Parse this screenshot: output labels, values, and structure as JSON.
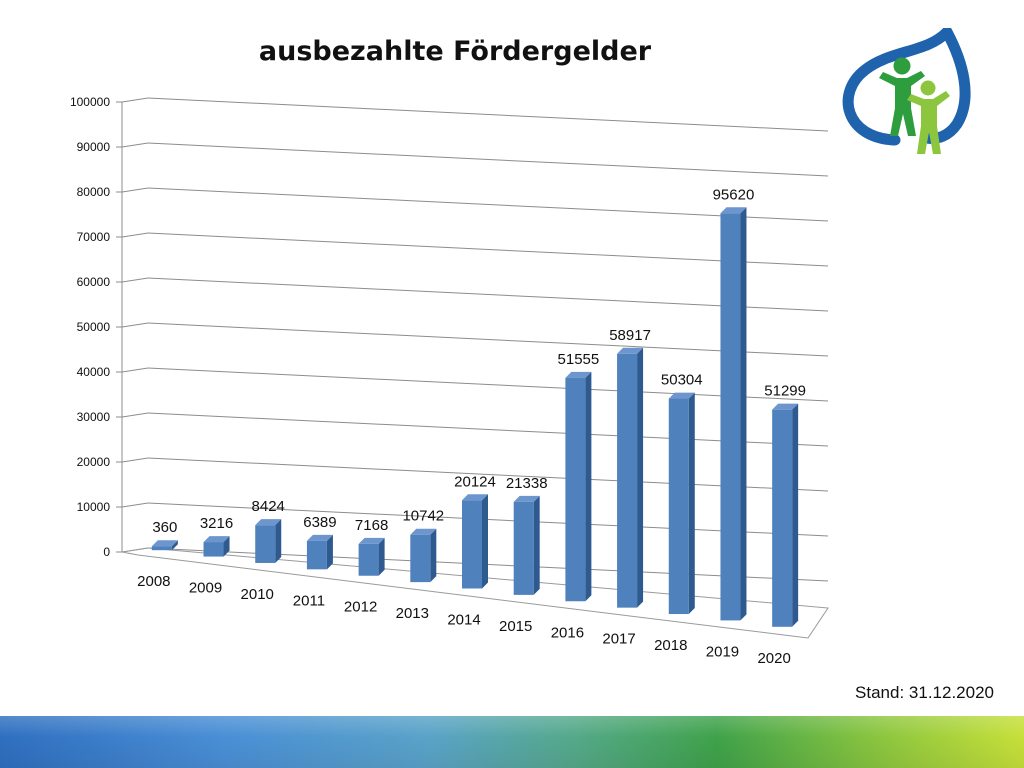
{
  "chart_data": {
    "type": "bar",
    "title": "ausbezahlte Fördergelder",
    "categories": [
      "2008",
      "2009",
      "2010",
      "2011",
      "2012",
      "2013",
      "2014",
      "2015",
      "2016",
      "2017",
      "2018",
      "2019",
      "2020"
    ],
    "values": [
      360,
      3216,
      8424,
      6389,
      7168,
      10742,
      20124,
      21338,
      51555,
      58917,
      50304,
      95620,
      51299
    ],
    "data_labels": [
      "360",
      "3216",
      "8424",
      "6389",
      "7168",
      "10742",
      "20124",
      "21338",
      "51555",
      "58917",
      "50304",
      "95620",
      "51299"
    ],
    "ylim": [
      0,
      100000
    ],
    "yticks": [
      0,
      10000,
      20000,
      30000,
      40000,
      50000,
      60000,
      70000,
      80000,
      90000,
      100000
    ],
    "grid": true,
    "legend": "none",
    "bar_color": "#4f81bd",
    "style": "3d-perspective"
  },
  "footer": {
    "stand": "Stand: 31.12.2020"
  },
  "logo": {
    "icon": "two-people-leaf-logo",
    "colors": [
      "#1f63ad",
      "#2e9d3d",
      "#8cc63f"
    ]
  }
}
